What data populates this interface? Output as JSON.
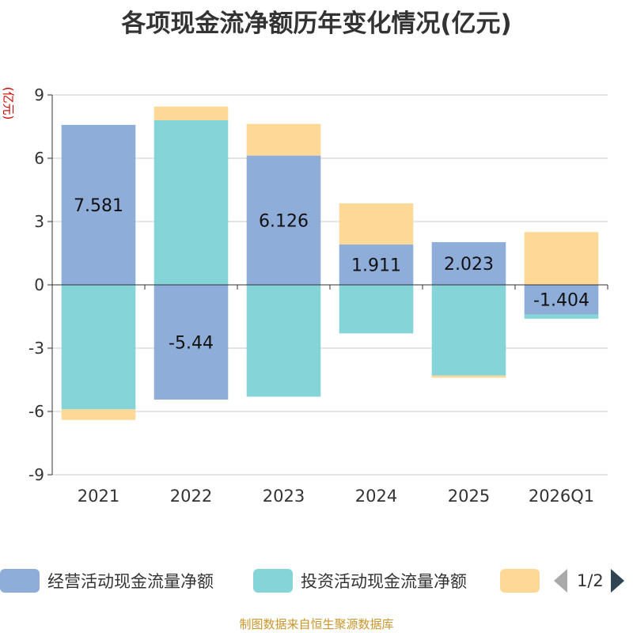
{
  "title": "各项现金流净额历年变化情况(亿元)",
  "unit_label": "(亿元)",
  "source": "制图数据来自恒生聚源数据库",
  "pager": {
    "text": "1/2"
  },
  "chart_data": {
    "type": "bar",
    "stacked": true,
    "categories": [
      "2021",
      "2022",
      "2023",
      "2024",
      "2025",
      "2026Q1"
    ],
    "ylim": [
      -9,
      9
    ],
    "yticks": [
      -9,
      -6,
      -3,
      0,
      3,
      6,
      9
    ],
    "series": [
      {
        "name": "经营活动现金流量净额",
        "color": "#8eadd9",
        "values": [
          7.581,
          -5.44,
          6.126,
          1.911,
          2.023,
          -1.404
        ],
        "show_labels": true
      },
      {
        "name": "投资活动现金流量净额",
        "color": "#85d5d8",
        "values": [
          -5.9,
          7.8,
          -5.3,
          -2.3,
          -4.3,
          -0.2
        ],
        "show_labels": false
      },
      {
        "name": "",
        "color": "#fdd896",
        "values": [
          -0.5,
          0.65,
          1.5,
          1.95,
          -0.1,
          2.5
        ],
        "show_labels": false
      }
    ],
    "data_labels": [
      "7.581",
      "-5.44",
      "6.126",
      "1.911",
      "2.023",
      "-1.404"
    ]
  },
  "legend": [
    {
      "label": "经营活动现金流量净额",
      "color": "#8eadd9"
    },
    {
      "label": "投资活动现金流量净额",
      "color": "#85d5d8"
    },
    {
      "label": "",
      "color": "#fdd896"
    }
  ]
}
